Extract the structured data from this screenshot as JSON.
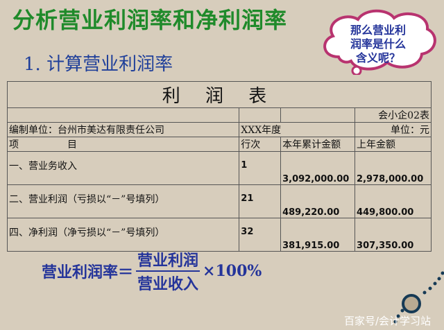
{
  "title": "分析营业利润率和净利润率",
  "subtitle": "1. 计算营业利润率",
  "bubble": {
    "lines": [
      "那么营业利",
      "润率是什么",
      "含义呢？"
    ]
  },
  "table": {
    "title": "利 润 表",
    "form_code": "会小企02表",
    "company": "编制单位：台州市美达有限责任公司",
    "period": "XXX年度",
    "unit": "单位：元",
    "headers": [
      "项　　　　　目",
      "行次",
      "本年累计金额",
      "上年金额"
    ],
    "rows": [
      {
        "item": "一、营业务收入",
        "line": "1",
        "current": "3,092,000.00",
        "prior": "2,978,000.00"
      },
      {
        "item": "二、营业利润（亏损以“－”号填列）",
        "line": "21",
        "current": "489,220.00",
        "prior": "449,800.00"
      },
      {
        "item": "四、净利润（净亏损以“－”号填列）",
        "line": "32",
        "current": "381,915.00",
        "prior": "307,350.00"
      }
    ]
  },
  "formula": {
    "lhs": "营业利润率＝",
    "numerator": "营业利润",
    "denominator": "营业收入",
    "multiplier": "×100%"
  },
  "watermark": "百家号/会计学习站"
}
